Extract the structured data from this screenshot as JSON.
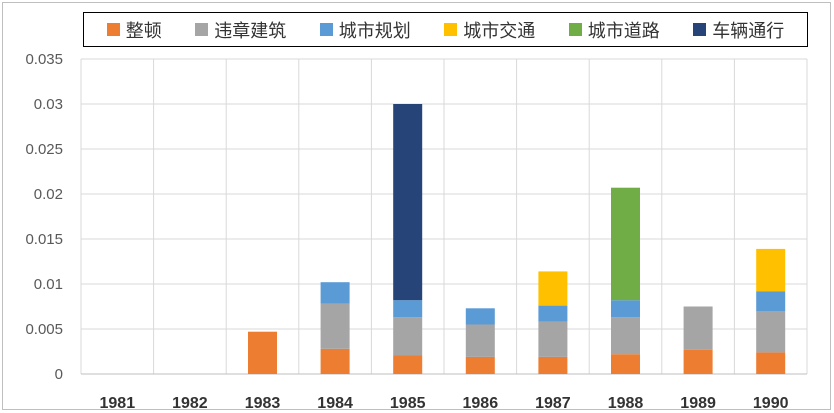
{
  "chart_data": {
    "type": "bar",
    "stacked": true,
    "categories": [
      "1981",
      "1982",
      "1983",
      "1984",
      "1985",
      "1986",
      "1987",
      "1988",
      "1989",
      "1990"
    ],
    "series": [
      {
        "name": "整顿",
        "color": "#ED7D31",
        "values": [
          0,
          0,
          0.0047,
          0.0028,
          0.0021,
          0.0019,
          0.0019,
          0.0022,
          0.0027,
          0.0024
        ]
      },
      {
        "name": "违章建筑",
        "color": "#A5A5A5",
        "values": [
          0,
          0,
          0,
          0.005,
          0.0042,
          0.0036,
          0.0039,
          0.0041,
          0.0048,
          0.0046
        ]
      },
      {
        "name": "城市规划",
        "color": "#5B9BD5",
        "values": [
          0,
          0,
          0,
          0.0024,
          0.0019,
          0.0018,
          0.0018,
          0.0019,
          0,
          0.0022
        ]
      },
      {
        "name": "城市交通",
        "color": "#FFC000",
        "values": [
          0,
          0,
          0,
          0,
          0,
          0,
          0.0038,
          0,
          0,
          0.0047
        ]
      },
      {
        "name": "城市道路",
        "color": "#70AD47",
        "values": [
          0,
          0,
          0,
          0,
          0,
          0,
          0,
          0.0125,
          0,
          0
        ]
      },
      {
        "name": "车辆通行",
        "color": "#264478",
        "values": [
          0,
          0,
          0,
          0,
          0.0218,
          0,
          0,
          0,
          0,
          0
        ]
      }
    ],
    "ylim": [
      0,
      0.035
    ],
    "yticks": [
      "0",
      "0.005",
      "0.01",
      "0.015",
      "0.02",
      "0.025",
      "0.03",
      "0.035"
    ],
    "ytick_values": [
      0,
      0.005,
      0.01,
      0.015,
      0.02,
      0.025,
      0.03,
      0.035
    ],
    "grid": true,
    "legend_position": "top"
  }
}
